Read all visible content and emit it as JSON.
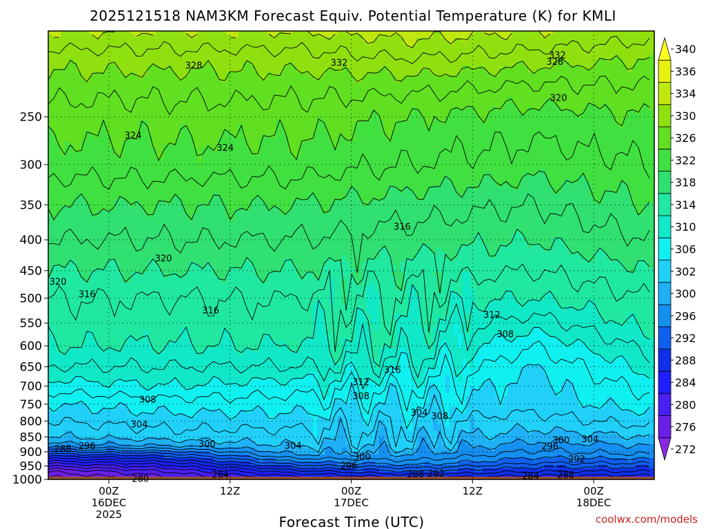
{
  "chart_data": {
    "type": "heatmap",
    "title": "2025121518 NAM3KM Forecast Equiv. Potential Temperature (K) for KMLI",
    "xlabel": "Forecast Time (UTC)",
    "ylabel": "",
    "y_axis": {
      "scale": "log",
      "inverted": true,
      "range": [
        1000,
        180
      ],
      "ticks": [
        250,
        300,
        350,
        400,
        450,
        500,
        550,
        600,
        650,
        700,
        750,
        800,
        850,
        900,
        950,
        1000
      ]
    },
    "x_axis": {
      "range_hours": [
        -5,
        45
      ],
      "ticks": [
        {
          "hours": 0,
          "lines": [
            "00Z",
            "16DEC",
            "2025"
          ]
        },
        {
          "hours": 10,
          "lines": [
            "12Z"
          ]
        },
        {
          "hours": 20,
          "lines": [
            "00Z",
            "17DEC"
          ]
        },
        {
          "hours": 30,
          "lines": [
            "12Z"
          ]
        },
        {
          "hours": 40,
          "lines": [
            "00Z",
            "18DEC"
          ]
        }
      ]
    },
    "grid": "dotted",
    "colorbar": {
      "placement": "right",
      "levels": [
        272,
        276,
        280,
        284,
        288,
        292,
        296,
        300,
        302,
        306,
        310,
        314,
        318,
        322,
        326,
        330,
        334,
        336,
        340
      ],
      "colors": [
        "#8a2be2",
        "#6a1fe6",
        "#4b1ff0",
        "#2020ff",
        "#1030e8",
        "#1060f0",
        "#1590f0",
        "#20b0f5",
        "#20d0f8",
        "#10f0f0",
        "#10e8c8",
        "#20e8a0",
        "#30e070",
        "#40e040",
        "#60e020",
        "#90e010",
        "#c0e810",
        "#e8f010",
        "#ffff20"
      ]
    },
    "profiles": [
      {
        "hours": -5,
        "points": [
          [
            1000,
            275
          ],
          [
            970,
            278
          ],
          [
            940,
            284
          ],
          [
            910,
            291
          ],
          [
            880,
            299
          ],
          [
            850,
            302
          ],
          [
            800,
            304
          ],
          [
            750,
            306
          ],
          [
            700,
            309
          ],
          [
            650,
            312
          ],
          [
            600,
            314
          ],
          [
            550,
            315
          ],
          [
            500,
            316
          ],
          [
            450,
            318
          ],
          [
            400,
            320
          ],
          [
            350,
            322
          ],
          [
            300,
            325
          ],
          [
            250,
            327
          ],
          [
            220,
            329
          ],
          [
            200,
            331
          ],
          [
            180,
            334
          ]
        ]
      },
      {
        "hours": 5,
        "points": [
          [
            1000,
            279
          ],
          [
            970,
            282
          ],
          [
            940,
            287
          ],
          [
            910,
            293
          ],
          [
            880,
            300
          ],
          [
            850,
            303
          ],
          [
            800,
            305
          ],
          [
            750,
            307
          ],
          [
            700,
            310
          ],
          [
            650,
            312
          ],
          [
            600,
            314
          ],
          [
            550,
            315
          ],
          [
            500,
            316
          ],
          [
            450,
            318
          ],
          [
            400,
            320
          ],
          [
            350,
            322
          ],
          [
            300,
            325
          ],
          [
            250,
            327
          ],
          [
            220,
            329
          ],
          [
            200,
            331
          ],
          [
            180,
            334
          ]
        ]
      },
      {
        "hours": 15,
        "points": [
          [
            1000,
            284
          ],
          [
            970,
            289
          ],
          [
            940,
            295
          ],
          [
            910,
            300
          ],
          [
            880,
            302
          ],
          [
            850,
            303
          ],
          [
            800,
            305
          ],
          [
            750,
            307
          ],
          [
            700,
            309
          ],
          [
            650,
            312
          ],
          [
            600,
            314
          ],
          [
            550,
            315
          ],
          [
            500,
            316
          ],
          [
            450,
            318
          ],
          [
            400,
            320
          ],
          [
            350,
            322
          ],
          [
            300,
            325
          ],
          [
            250,
            327
          ],
          [
            220,
            329
          ],
          [
            200,
            331
          ],
          [
            180,
            334
          ]
        ]
      },
      {
        "hours": 25,
        "points": [
          [
            1000,
            287
          ],
          [
            970,
            292
          ],
          [
            940,
            297
          ],
          [
            910,
            300
          ],
          [
            880,
            302
          ],
          [
            850,
            303
          ],
          [
            800,
            304
          ],
          [
            750,
            306
          ],
          [
            700,
            308
          ],
          [
            650,
            311
          ],
          [
            600,
            313
          ],
          [
            550,
            314
          ],
          [
            500,
            315
          ],
          [
            450,
            317
          ],
          [
            400,
            319
          ],
          [
            350,
            321
          ],
          [
            300,
            324
          ],
          [
            250,
            326
          ],
          [
            220,
            329
          ],
          [
            200,
            332
          ],
          [
            180,
            335
          ]
        ]
      },
      {
        "hours": 35,
        "points": [
          [
            1000,
            286
          ],
          [
            970,
            290
          ],
          [
            940,
            294
          ],
          [
            910,
            297
          ],
          [
            880,
            299
          ],
          [
            850,
            301
          ],
          [
            800,
            303
          ],
          [
            750,
            305
          ],
          [
            700,
            305
          ],
          [
            650,
            306
          ],
          [
            600,
            308
          ],
          [
            550,
            311
          ],
          [
            500,
            314
          ],
          [
            450,
            316
          ],
          [
            400,
            318
          ],
          [
            350,
            320
          ],
          [
            300,
            323
          ],
          [
            250,
            325
          ],
          [
            220,
            328
          ],
          [
            200,
            331
          ],
          [
            180,
            334
          ]
        ]
      },
      {
        "hours": 45,
        "points": [
          [
            1000,
            286
          ],
          [
            970,
            290
          ],
          [
            940,
            294
          ],
          [
            910,
            298
          ],
          [
            880,
            300
          ],
          [
            850,
            302
          ],
          [
            800,
            305
          ],
          [
            750,
            307
          ],
          [
            700,
            309
          ],
          [
            650,
            311
          ],
          [
            600,
            313
          ],
          [
            550,
            315
          ],
          [
            500,
            316
          ],
          [
            450,
            318
          ],
          [
            400,
            320
          ],
          [
            350,
            322
          ],
          [
            300,
            324
          ],
          [
            250,
            326
          ],
          [
            220,
            328
          ],
          [
            200,
            330
          ],
          [
            180,
            333
          ]
        ]
      }
    ],
    "contour_labels": [
      {
        "text": "328",
        "hours": 7,
        "p": 205
      },
      {
        "text": "332",
        "hours": 19,
        "p": 203
      },
      {
        "text": "332",
        "hours": 37,
        "p": 197
      },
      {
        "text": "328",
        "hours": 36.8,
        "p": 202
      },
      {
        "text": "320",
        "hours": 37.1,
        "p": 232
      },
      {
        "text": "324",
        "hours": 2,
        "p": 268
      },
      {
        "text": "324",
        "hours": 9.6,
        "p": 281
      },
      {
        "text": "316",
        "hours": 24.2,
        "p": 380
      },
      {
        "text": "320",
        "hours": 4.5,
        "p": 429
      },
      {
        "text": "320",
        "hours": -4.2,
        "p": 469
      },
      {
        "text": "316",
        "hours": -1.8,
        "p": 492
      },
      {
        "text": "316",
        "hours": 8.4,
        "p": 523
      },
      {
        "text": "312",
        "hours": 31.6,
        "p": 532
      },
      {
        "text": "308",
        "hours": 32.7,
        "p": 573
      },
      {
        "text": "316",
        "hours": 23.4,
        "p": 657
      },
      {
        "text": "312",
        "hours": 20.8,
        "p": 688
      },
      {
        "text": "308",
        "hours": 20.8,
        "p": 726
      },
      {
        "text": "308",
        "hours": 3.2,
        "p": 736
      },
      {
        "text": "304",
        "hours": 25.6,
        "p": 773
      },
      {
        "text": "308",
        "hours": 27.3,
        "p": 784
      },
      {
        "text": "304",
        "hours": 2.5,
        "p": 809
      },
      {
        "text": "300",
        "hours": 37.3,
        "p": 859
      },
      {
        "text": "304",
        "hours": 39.7,
        "p": 856
      },
      {
        "text": "300",
        "hours": 8.1,
        "p": 872
      },
      {
        "text": "304",
        "hours": 15.2,
        "p": 878
      },
      {
        "text": "296",
        "hours": -1.8,
        "p": 879
      },
      {
        "text": "296",
        "hours": 36.4,
        "p": 880
      },
      {
        "text": "288",
        "hours": -3.8,
        "p": 888
      },
      {
        "text": "300",
        "hours": 20.9,
        "p": 915
      },
      {
        "text": "292",
        "hours": 38.6,
        "p": 924
      },
      {
        "text": "296",
        "hours": 19.8,
        "p": 948
      },
      {
        "text": "288",
        "hours": 25.3,
        "p": 979
      },
      {
        "text": "292",
        "hours": 27,
        "p": 977
      },
      {
        "text": "284",
        "hours": 9.2,
        "p": 980
      },
      {
        "text": "284",
        "hours": 34.8,
        "p": 985
      },
      {
        "text": "288",
        "hours": 37.7,
        "p": 982
      },
      {
        "text": "280",
        "hours": 2.6,
        "p": 996
      }
    ],
    "surface": {
      "p_top": 990,
      "color": "#a0522d"
    }
  },
  "watermark": "coolwx.com/models"
}
